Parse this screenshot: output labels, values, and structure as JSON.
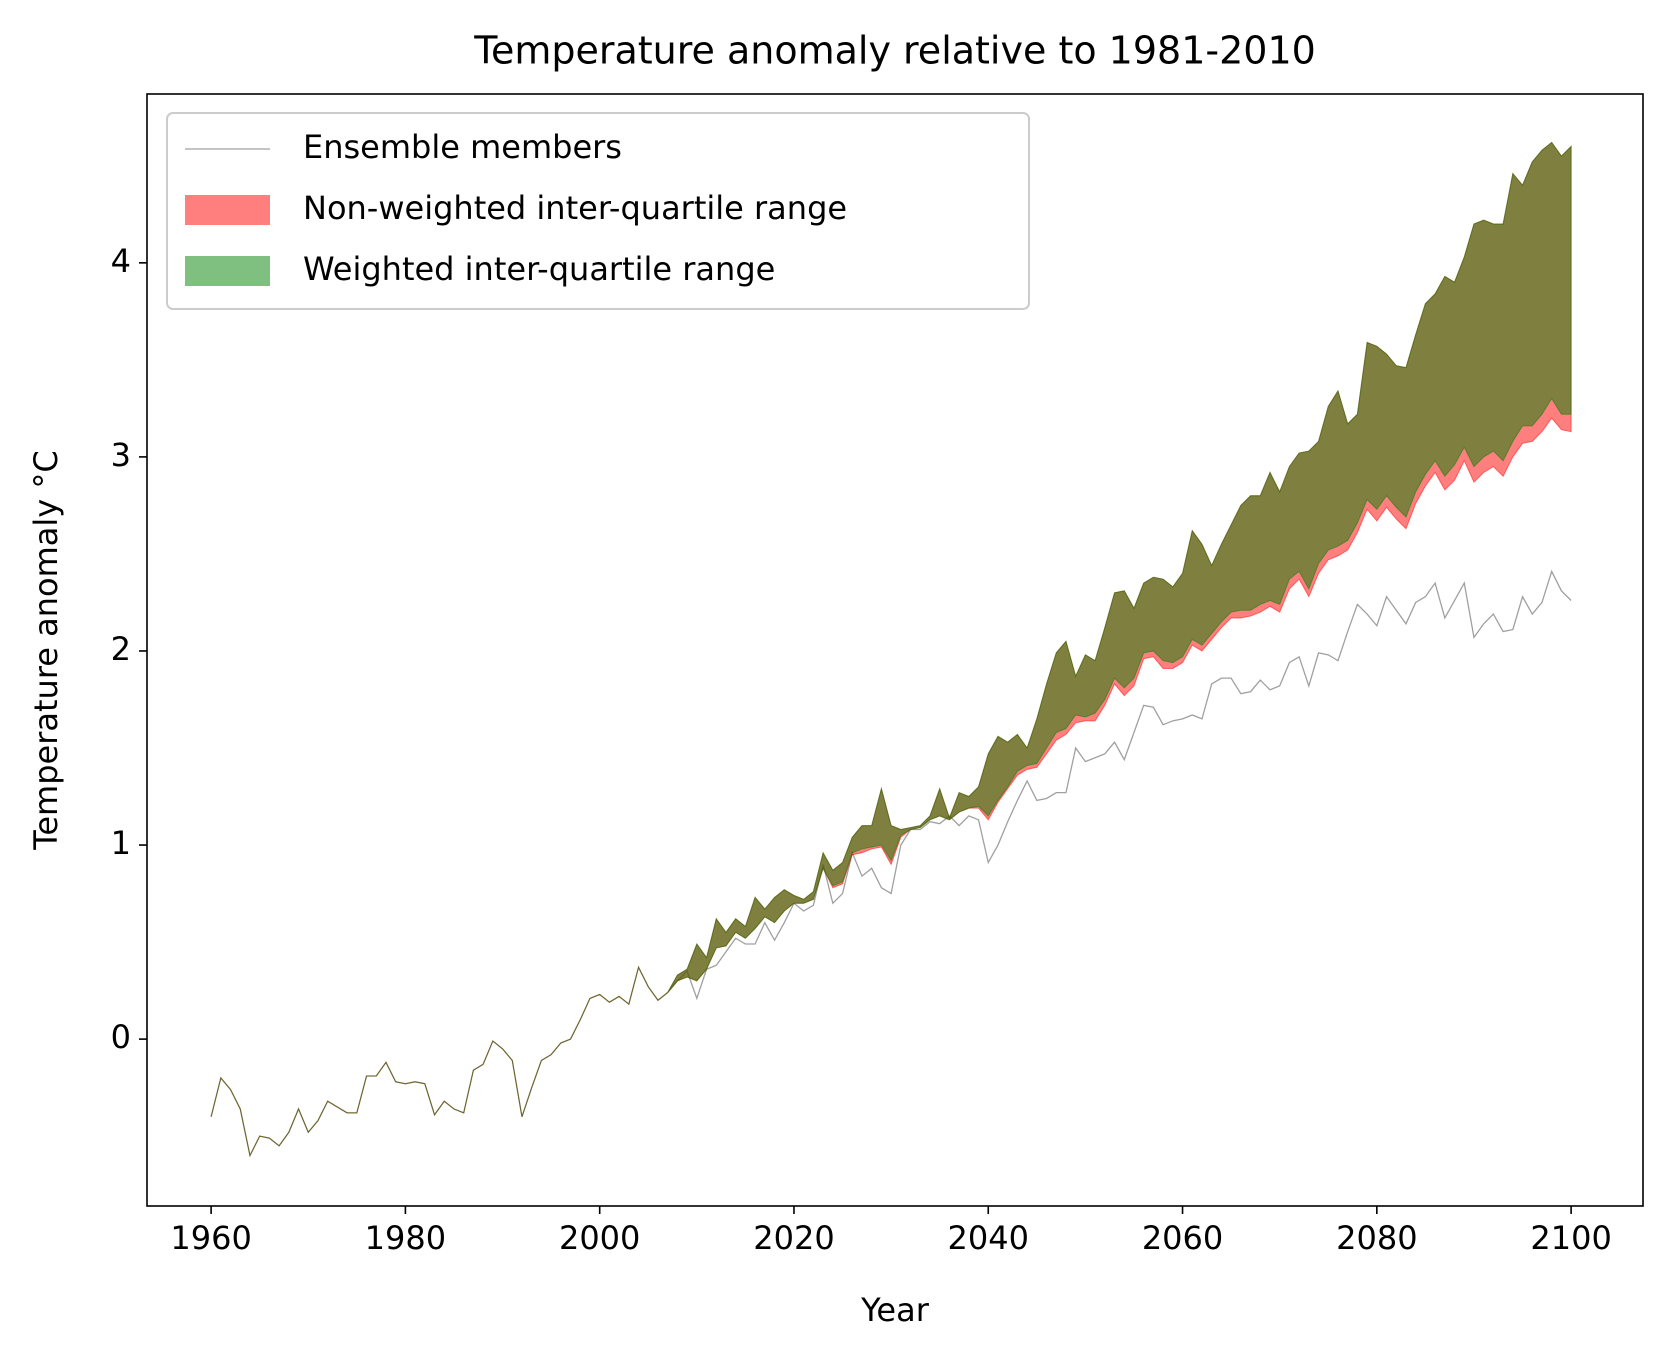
{
  "chart_data": {
    "type": "band",
    "title": "Temperature anomaly relative to 1981-2010",
    "x_label": "Year",
    "y_label": "Temperature anomaly °C",
    "xlim": [
      1953.4,
      2107.4
    ],
    "ylim": [
      -0.86,
      4.87
    ],
    "xticks": [
      1960,
      1980,
      2000,
      2020,
      2040,
      2060,
      2080,
      2100
    ],
    "yticks": [
      0,
      1,
      2,
      3,
      4
    ],
    "legend": "upper left",
    "alpha": 0.5,
    "x": [
      1960,
      1961,
      1962,
      1963,
      1964,
      1965,
      1966,
      1967,
      1968,
      1969,
      1970,
      1971,
      1972,
      1973,
      1974,
      1975,
      1976,
      1977,
      1978,
      1979,
      1980,
      1981,
      1982,
      1983,
      1984,
      1985,
      1986,
      1987,
      1988,
      1989,
      1990,
      1991,
      1992,
      1993,
      1994,
      1995,
      1996,
      1997,
      1998,
      1999,
      2000,
      2001,
      2002,
      2003,
      2004,
      2005,
      2006,
      2007,
      2008,
      2009,
      2010,
      2011,
      2012,
      2013,
      2014,
      2015,
      2016,
      2017,
      2018,
      2019,
      2020,
      2021,
      2022,
      2023,
      2024,
      2025,
      2026,
      2027,
      2028,
      2029,
      2030,
      2031,
      2032,
      2033,
      2034,
      2035,
      2036,
      2037,
      2038,
      2039,
      2040,
      2041,
      2042,
      2043,
      2044,
      2045,
      2046,
      2047,
      2048,
      2049,
      2050,
      2051,
      2052,
      2053,
      2054,
      2055,
      2056,
      2057,
      2058,
      2059,
      2060,
      2061,
      2062,
      2063,
      2064,
      2065,
      2066,
      2067,
      2068,
      2069,
      2070,
      2071,
      2072,
      2073,
      2074,
      2075,
      2076,
      2077,
      2078,
      2079,
      2080,
      2081,
      2082,
      2083,
      2084,
      2085,
      2086,
      2087,
      2088,
      2089,
      2090,
      2091,
      2092,
      2093,
      2094,
      2095,
      2096,
      2097,
      2098,
      2099,
      2100
    ],
    "series": [
      {
        "name": "Ensemble members",
        "color": "#a0a0a0",
        "values": [
          -0.4,
          -0.2,
          -0.26,
          -0.36,
          -0.6,
          -0.5,
          -0.51,
          -0.55,
          -0.48,
          -0.36,
          -0.48,
          -0.42,
          -0.32,
          -0.35,
          -0.38,
          -0.38,
          -0.19,
          -0.19,
          -0.12,
          -0.22,
          -0.23,
          -0.22,
          -0.23,
          -0.39,
          -0.32,
          -0.36,
          -0.38,
          -0.16,
          -0.13,
          -0.01,
          -0.05,
          -0.11,
          -0.4,
          -0.25,
          -0.11,
          -0.08,
          -0.02,
          0.0,
          0.1,
          0.21,
          0.23,
          0.19,
          0.22,
          0.18,
          0.37,
          0.27,
          0.2,
          0.24,
          0.3,
          0.35,
          0.21,
          0.36,
          0.38,
          0.45,
          0.52,
          0.49,
          0.49,
          0.6,
          0.51,
          0.6,
          0.7,
          0.66,
          0.69,
          0.9,
          0.7,
          0.75,
          0.96,
          0.84,
          0.88,
          0.78,
          0.75,
          1.0,
          1.08,
          1.08,
          1.12,
          1.11,
          1.15,
          1.1,
          1.15,
          1.13,
          0.91,
          1.0,
          1.12,
          1.23,
          1.33,
          1.23,
          1.24,
          1.27,
          1.27,
          1.5,
          1.43,
          1.45,
          1.47,
          1.53,
          1.44,
          1.58,
          1.72,
          1.71,
          1.62,
          1.64,
          1.65,
          1.67,
          1.65,
          1.83,
          1.86,
          1.86,
          1.78,
          1.79,
          1.85,
          1.8,
          1.82,
          1.94,
          1.97,
          1.82,
          1.99,
          1.98,
          1.95,
          2.1,
          2.24,
          2.19,
          2.13,
          2.28,
          2.21,
          2.14,
          2.25,
          2.28,
          2.35,
          2.17,
          2.26,
          2.35,
          2.07,
          2.14,
          2.19,
          2.1,
          2.11,
          2.28,
          2.19,
          2.25,
          2.41,
          2.31,
          2.26
        ]
      },
      {
        "name": "Non-weighted inter-quartile range",
        "color": "#ff0000",
        "low": [
          -0.4,
          -0.2,
          -0.26,
          -0.36,
          -0.6,
          -0.5,
          -0.51,
          -0.55,
          -0.48,
          -0.36,
          -0.48,
          -0.42,
          -0.32,
          -0.35,
          -0.38,
          -0.38,
          -0.19,
          -0.19,
          -0.12,
          -0.22,
          -0.23,
          -0.22,
          -0.23,
          -0.39,
          -0.32,
          -0.36,
          -0.38,
          -0.16,
          -0.13,
          -0.01,
          -0.05,
          -0.11,
          -0.4,
          -0.25,
          -0.11,
          -0.08,
          -0.02,
          0.0,
          0.1,
          0.21,
          0.23,
          0.19,
          0.22,
          0.18,
          0.37,
          0.27,
          0.2,
          0.24,
          0.3,
          0.32,
          0.3,
          0.36,
          0.47,
          0.48,
          0.55,
          0.52,
          0.57,
          0.63,
          0.6,
          0.66,
          0.7,
          0.7,
          0.72,
          0.88,
          0.78,
          0.8,
          0.95,
          0.96,
          0.98,
          0.99,
          0.9,
          1.04,
          1.08,
          1.09,
          1.13,
          1.15,
          1.13,
          1.17,
          1.19,
          1.19,
          1.13,
          1.22,
          1.29,
          1.36,
          1.39,
          1.4,
          1.47,
          1.54,
          1.57,
          1.63,
          1.64,
          1.64,
          1.72,
          1.83,
          1.77,
          1.82,
          1.96,
          1.97,
          1.91,
          1.91,
          1.94,
          2.03,
          2.0,
          2.06,
          2.12,
          2.17,
          2.17,
          2.18,
          2.2,
          2.23,
          2.2,
          2.32,
          2.37,
          2.28,
          2.4,
          2.47,
          2.49,
          2.52,
          2.61,
          2.73,
          2.67,
          2.74,
          2.68,
          2.63,
          2.76,
          2.85,
          2.92,
          2.83,
          2.88,
          2.98,
          2.87,
          2.92,
          2.95,
          2.9,
          3.0,
          3.07,
          3.08,
          3.13,
          3.2,
          3.14,
          3.13
        ],
        "high": [
          -0.4,
          -0.2,
          -0.26,
          -0.36,
          -0.6,
          -0.5,
          -0.51,
          -0.55,
          -0.48,
          -0.36,
          -0.48,
          -0.42,
          -0.32,
          -0.35,
          -0.38,
          -0.38,
          -0.19,
          -0.19,
          -0.12,
          -0.22,
          -0.23,
          -0.22,
          -0.23,
          -0.39,
          -0.32,
          -0.36,
          -0.38,
          -0.16,
          -0.13,
          -0.01,
          -0.05,
          -0.11,
          -0.4,
          -0.25,
          -0.11,
          -0.08,
          -0.02,
          0.0,
          0.1,
          0.21,
          0.23,
          0.19,
          0.22,
          0.18,
          0.37,
          0.27,
          0.2,
          0.24,
          0.33,
          0.36,
          0.49,
          0.42,
          0.62,
          0.55,
          0.62,
          0.58,
          0.73,
          0.67,
          0.73,
          0.77,
          0.74,
          0.72,
          0.76,
          0.96,
          0.87,
          0.91,
          1.04,
          1.1,
          1.1,
          1.29,
          1.1,
          1.08,
          1.09,
          1.1,
          1.15,
          1.29,
          1.14,
          1.27,
          1.25,
          1.3,
          1.47,
          1.56,
          1.53,
          1.57,
          1.5,
          1.65,
          1.83,
          1.99,
          2.05,
          1.87,
          1.98,
          1.95,
          2.12,
          2.3,
          2.31,
          2.22,
          2.35,
          2.38,
          2.37,
          2.33,
          2.4,
          2.62,
          2.55,
          2.44,
          2.55,
          2.65,
          2.75,
          2.8,
          2.8,
          2.92,
          2.82,
          2.95,
          3.02,
          3.03,
          3.08,
          3.26,
          3.34,
          3.17,
          3.22,
          3.59,
          3.57,
          3.53,
          3.47,
          3.46,
          3.63,
          3.79,
          3.84,
          3.93,
          3.9,
          4.03,
          4.2,
          4.22,
          4.2,
          4.2,
          4.46,
          4.4,
          4.52,
          4.58,
          4.62,
          4.55,
          4.6
        ]
      },
      {
        "name": "Weighted inter-quartile range",
        "color": "#008000",
        "low": [
          -0.4,
          -0.2,
          -0.26,
          -0.36,
          -0.6,
          -0.5,
          -0.51,
          -0.55,
          -0.48,
          -0.36,
          -0.48,
          -0.42,
          -0.32,
          -0.35,
          -0.38,
          -0.38,
          -0.19,
          -0.19,
          -0.12,
          -0.22,
          -0.23,
          -0.22,
          -0.23,
          -0.39,
          -0.32,
          -0.36,
          -0.38,
          -0.16,
          -0.13,
          -0.01,
          -0.05,
          -0.11,
          -0.4,
          -0.25,
          -0.11,
          -0.08,
          -0.02,
          0.0,
          0.1,
          0.21,
          0.23,
          0.19,
          0.22,
          0.18,
          0.37,
          0.27,
          0.2,
          0.24,
          0.3,
          0.32,
          0.3,
          0.36,
          0.47,
          0.48,
          0.55,
          0.52,
          0.57,
          0.63,
          0.6,
          0.66,
          0.7,
          0.7,
          0.72,
          0.88,
          0.79,
          0.81,
          0.96,
          0.98,
          0.99,
          1.0,
          0.92,
          1.05,
          1.08,
          1.09,
          1.13,
          1.15,
          1.13,
          1.17,
          1.19,
          1.2,
          1.15,
          1.23,
          1.3,
          1.38,
          1.41,
          1.42,
          1.5,
          1.58,
          1.6,
          1.67,
          1.66,
          1.68,
          1.75,
          1.86,
          1.81,
          1.86,
          1.99,
          2.0,
          1.95,
          1.94,
          1.97,
          2.06,
          2.03,
          2.09,
          2.15,
          2.2,
          2.21,
          2.21,
          2.24,
          2.26,
          2.24,
          2.37,
          2.41,
          2.32,
          2.45,
          2.52,
          2.54,
          2.57,
          2.66,
          2.78,
          2.73,
          2.8,
          2.74,
          2.69,
          2.82,
          2.91,
          2.98,
          2.9,
          2.96,
          3.05,
          2.95,
          3.0,
          3.03,
          2.98,
          3.08,
          3.16,
          3.16,
          3.22,
          3.3,
          3.22,
          3.22
        ],
        "high": [
          -0.4,
          -0.2,
          -0.26,
          -0.36,
          -0.6,
          -0.5,
          -0.51,
          -0.55,
          -0.48,
          -0.36,
          -0.48,
          -0.42,
          -0.32,
          -0.35,
          -0.38,
          -0.38,
          -0.19,
          -0.19,
          -0.12,
          -0.22,
          -0.23,
          -0.22,
          -0.23,
          -0.39,
          -0.32,
          -0.36,
          -0.38,
          -0.16,
          -0.13,
          -0.01,
          -0.05,
          -0.11,
          -0.4,
          -0.25,
          -0.11,
          -0.08,
          -0.02,
          0.0,
          0.1,
          0.21,
          0.23,
          0.19,
          0.22,
          0.18,
          0.37,
          0.27,
          0.2,
          0.24,
          0.33,
          0.36,
          0.49,
          0.42,
          0.62,
          0.55,
          0.62,
          0.58,
          0.73,
          0.67,
          0.73,
          0.77,
          0.74,
          0.72,
          0.76,
          0.96,
          0.87,
          0.91,
          1.04,
          1.1,
          1.1,
          1.29,
          1.1,
          1.08,
          1.09,
          1.1,
          1.15,
          1.29,
          1.14,
          1.27,
          1.25,
          1.3,
          1.47,
          1.56,
          1.53,
          1.57,
          1.5,
          1.65,
          1.83,
          1.99,
          2.05,
          1.87,
          1.98,
          1.95,
          2.12,
          2.3,
          2.31,
          2.22,
          2.35,
          2.38,
          2.37,
          2.33,
          2.4,
          2.62,
          2.55,
          2.44,
          2.55,
          2.65,
          2.75,
          2.8,
          2.8,
          2.92,
          2.82,
          2.95,
          3.02,
          3.03,
          3.08,
          3.26,
          3.34,
          3.17,
          3.22,
          3.59,
          3.57,
          3.53,
          3.47,
          3.46,
          3.63,
          3.79,
          3.84,
          3.93,
          3.9,
          4.03,
          4.2,
          4.22,
          4.2,
          4.2,
          4.46,
          4.4,
          4.52,
          4.58,
          4.62,
          4.55,
          4.6
        ]
      }
    ]
  }
}
